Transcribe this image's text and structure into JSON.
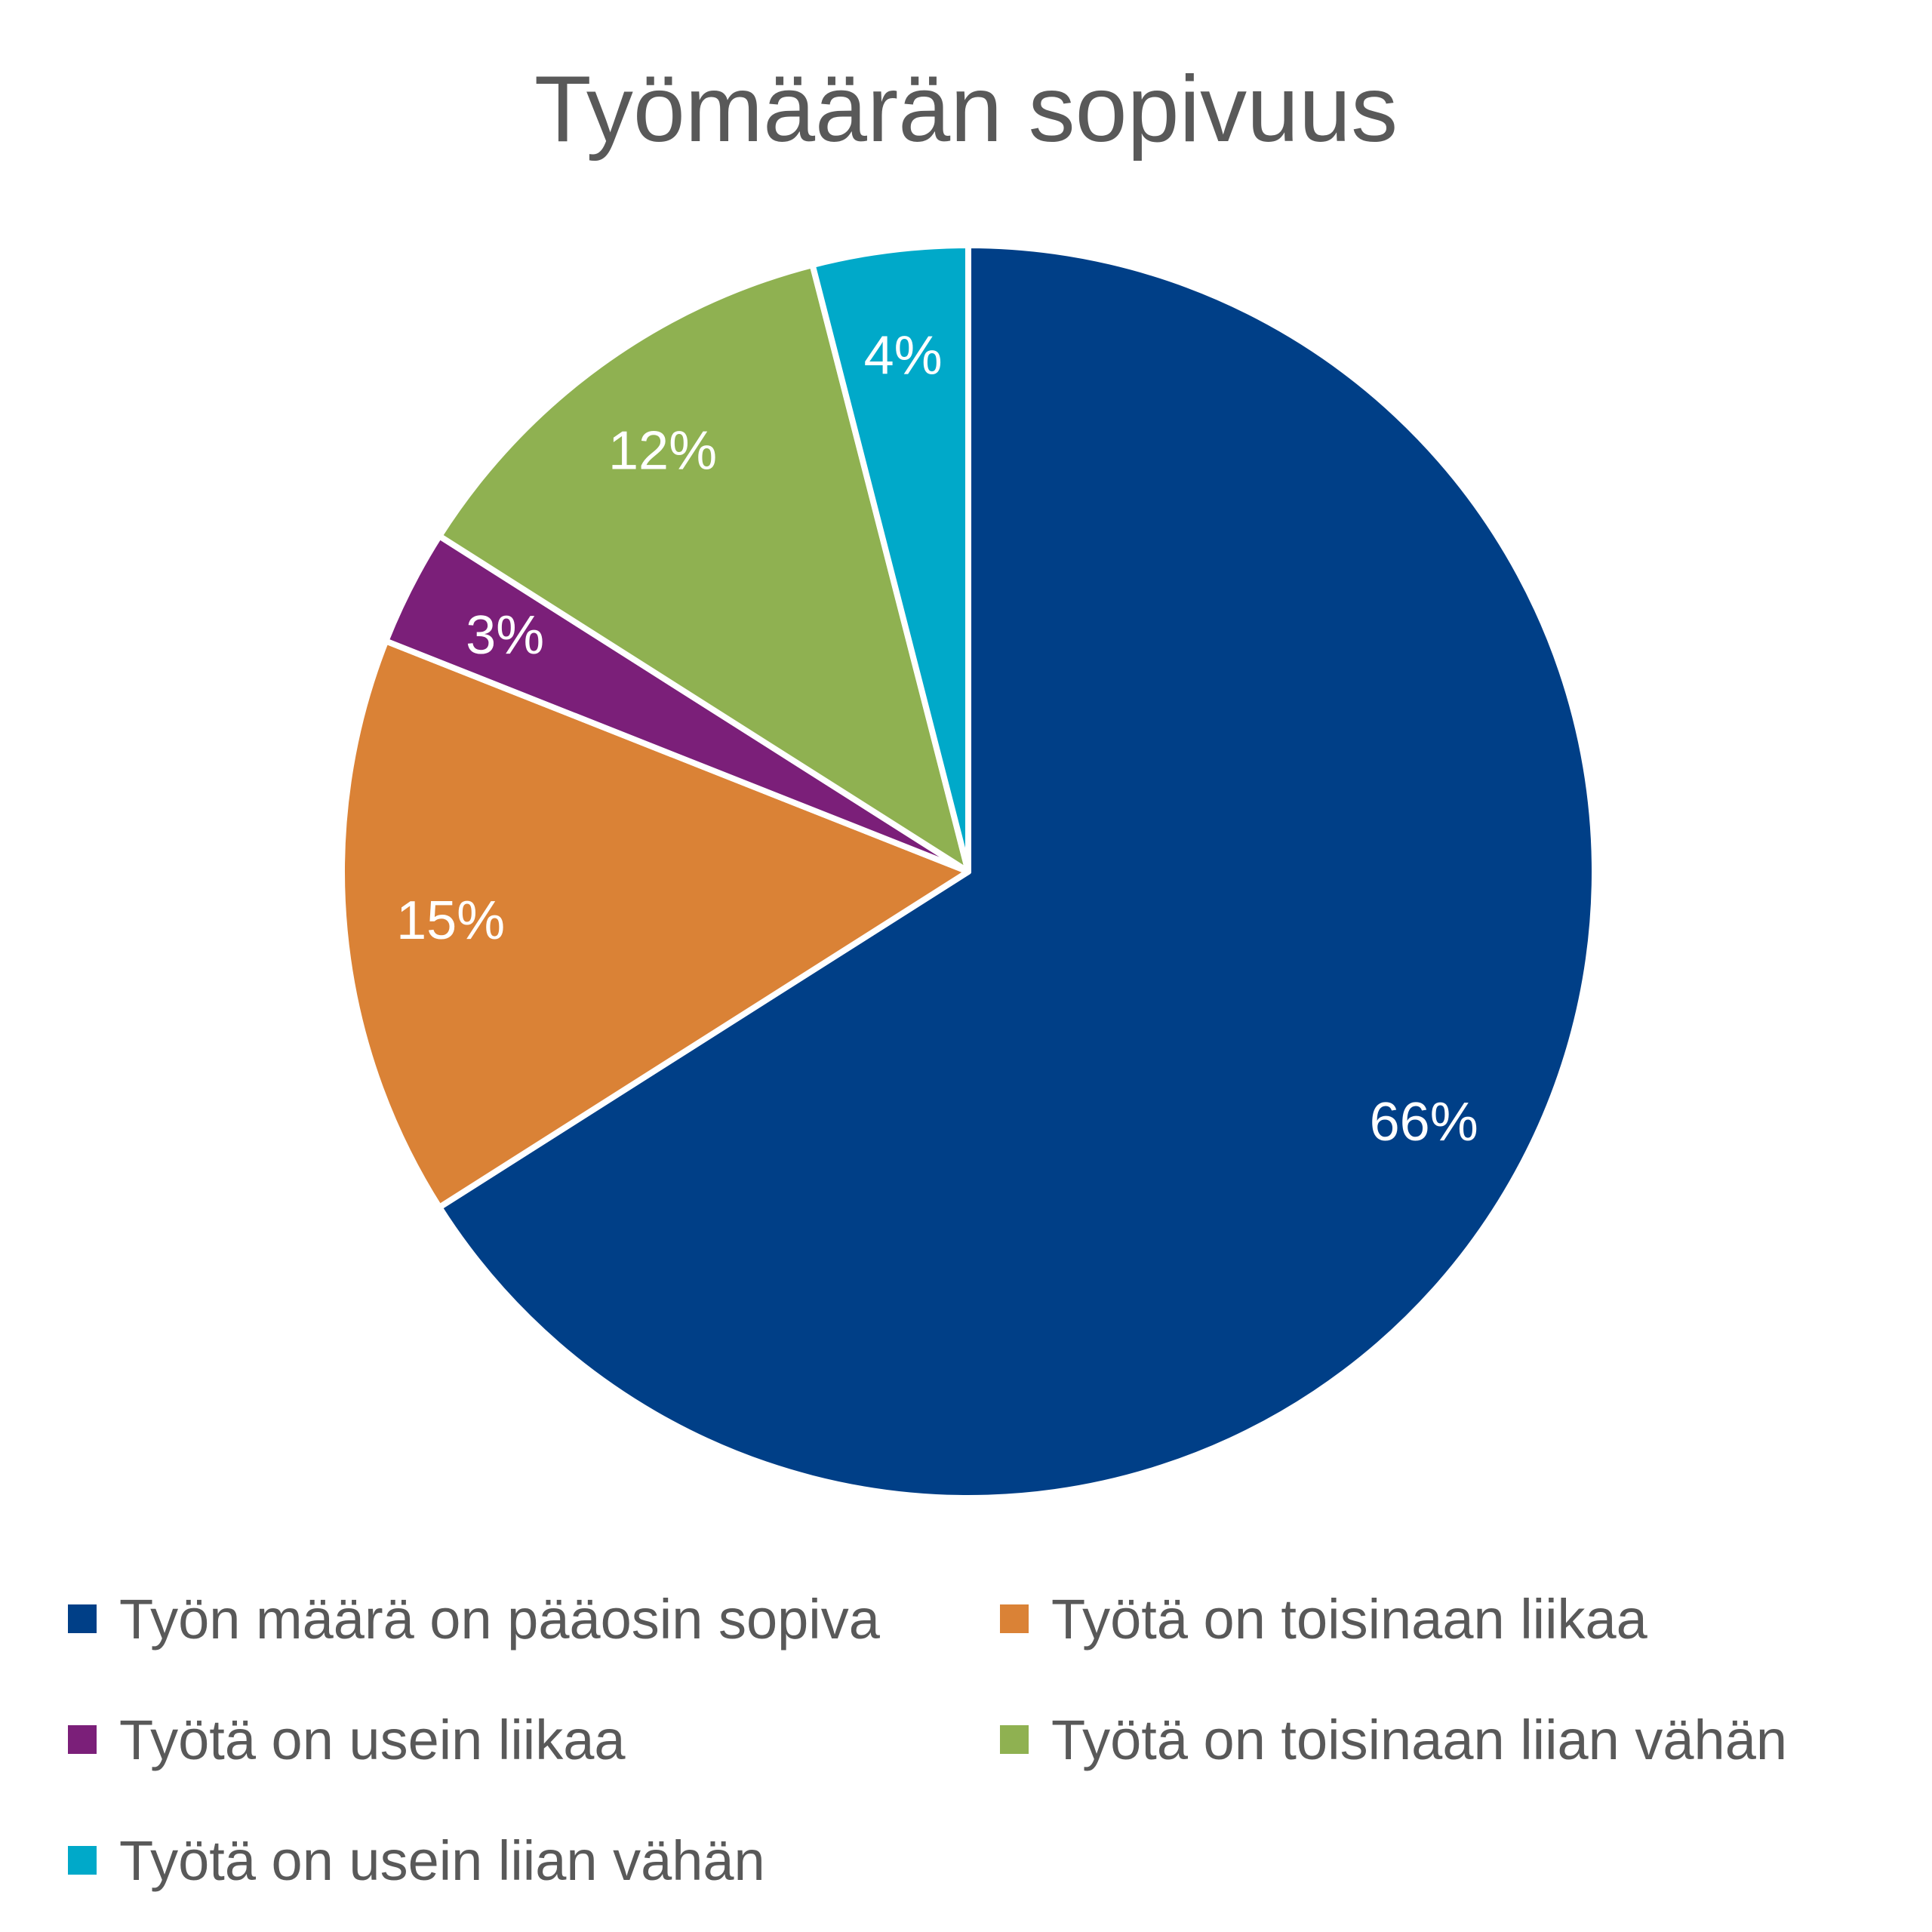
{
  "chart_data": {
    "type": "pie",
    "title": "Työmäärän sopivuus",
    "slices": [
      {
        "label": "Työn määrä on pääosin sopiva",
        "value": 66,
        "display": "66%",
        "color": "#003F87"
      },
      {
        "label": "Työtä on toisinaan liikaa",
        "value": 15,
        "display": "15%",
        "color": "#DA8236"
      },
      {
        "label": "Työtä on usein liikaa",
        "value": 3,
        "display": "3%",
        "color": "#7B1F79"
      },
      {
        "label": "Työtä on toisinaan liian vähän",
        "value": 12,
        "display": "12%",
        "color": "#8FB151"
      },
      {
        "label": "Työtä on usein liian vähän",
        "value": 4,
        "display": "4%",
        "color": "#00A9C9"
      }
    ],
    "legend_position": "bottom"
  }
}
